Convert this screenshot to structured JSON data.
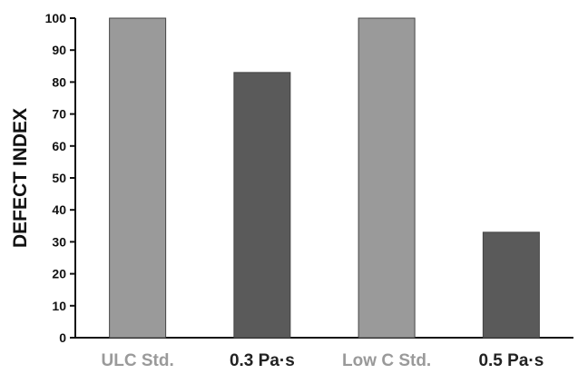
{
  "chart_data": {
    "type": "bar",
    "title": "",
    "xlabel": "",
    "ylabel": "DEFECT INDEX",
    "ylim": [
      0,
      100
    ],
    "yticks": [
      0,
      10,
      20,
      30,
      40,
      50,
      60,
      70,
      80,
      90,
      100
    ],
    "grid": false,
    "legend": "none",
    "categories": [
      "ULC Std.",
      "0.3 Pa·s",
      "Low C Std.",
      "0.5 Pa·s"
    ],
    "values": [
      100,
      83,
      100,
      33
    ],
    "bar_colors": [
      "#9a9a9a",
      "#5a5a5a",
      "#9a9a9a",
      "#5a5a5a"
    ],
    "label_colors": [
      "#9a9a9a",
      "#222222",
      "#9a9a9a",
      "#222222"
    ]
  }
}
